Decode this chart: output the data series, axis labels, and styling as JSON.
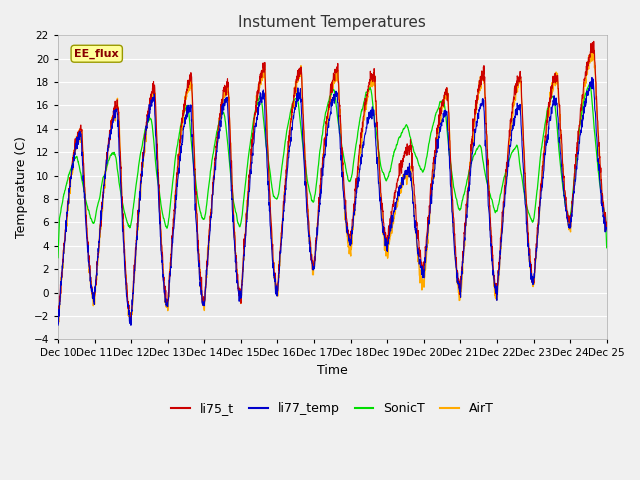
{
  "title": "Instument Temperatures",
  "xlabel": "Time",
  "ylabel": "Temperature (C)",
  "ylim": [
    -4,
    22
  ],
  "yticks": [
    -4,
    -2,
    0,
    2,
    4,
    6,
    8,
    10,
    12,
    14,
    16,
    18,
    20,
    22
  ],
  "annotation": "EE_flux",
  "background_color": "#f0f0f0",
  "plot_bg_color": "#ebebeb",
  "line_colors": {
    "li75_t": "#cc0000",
    "li77_temp": "#0000cc",
    "SonicT": "#00dd00",
    "AirT": "#ffaa00"
  },
  "legend_labels": [
    "li75_t",
    "li77_temp",
    "SonicT",
    "AirT"
  ],
  "num_days": 15,
  "start_day": 10,
  "points_per_day": 144
}
